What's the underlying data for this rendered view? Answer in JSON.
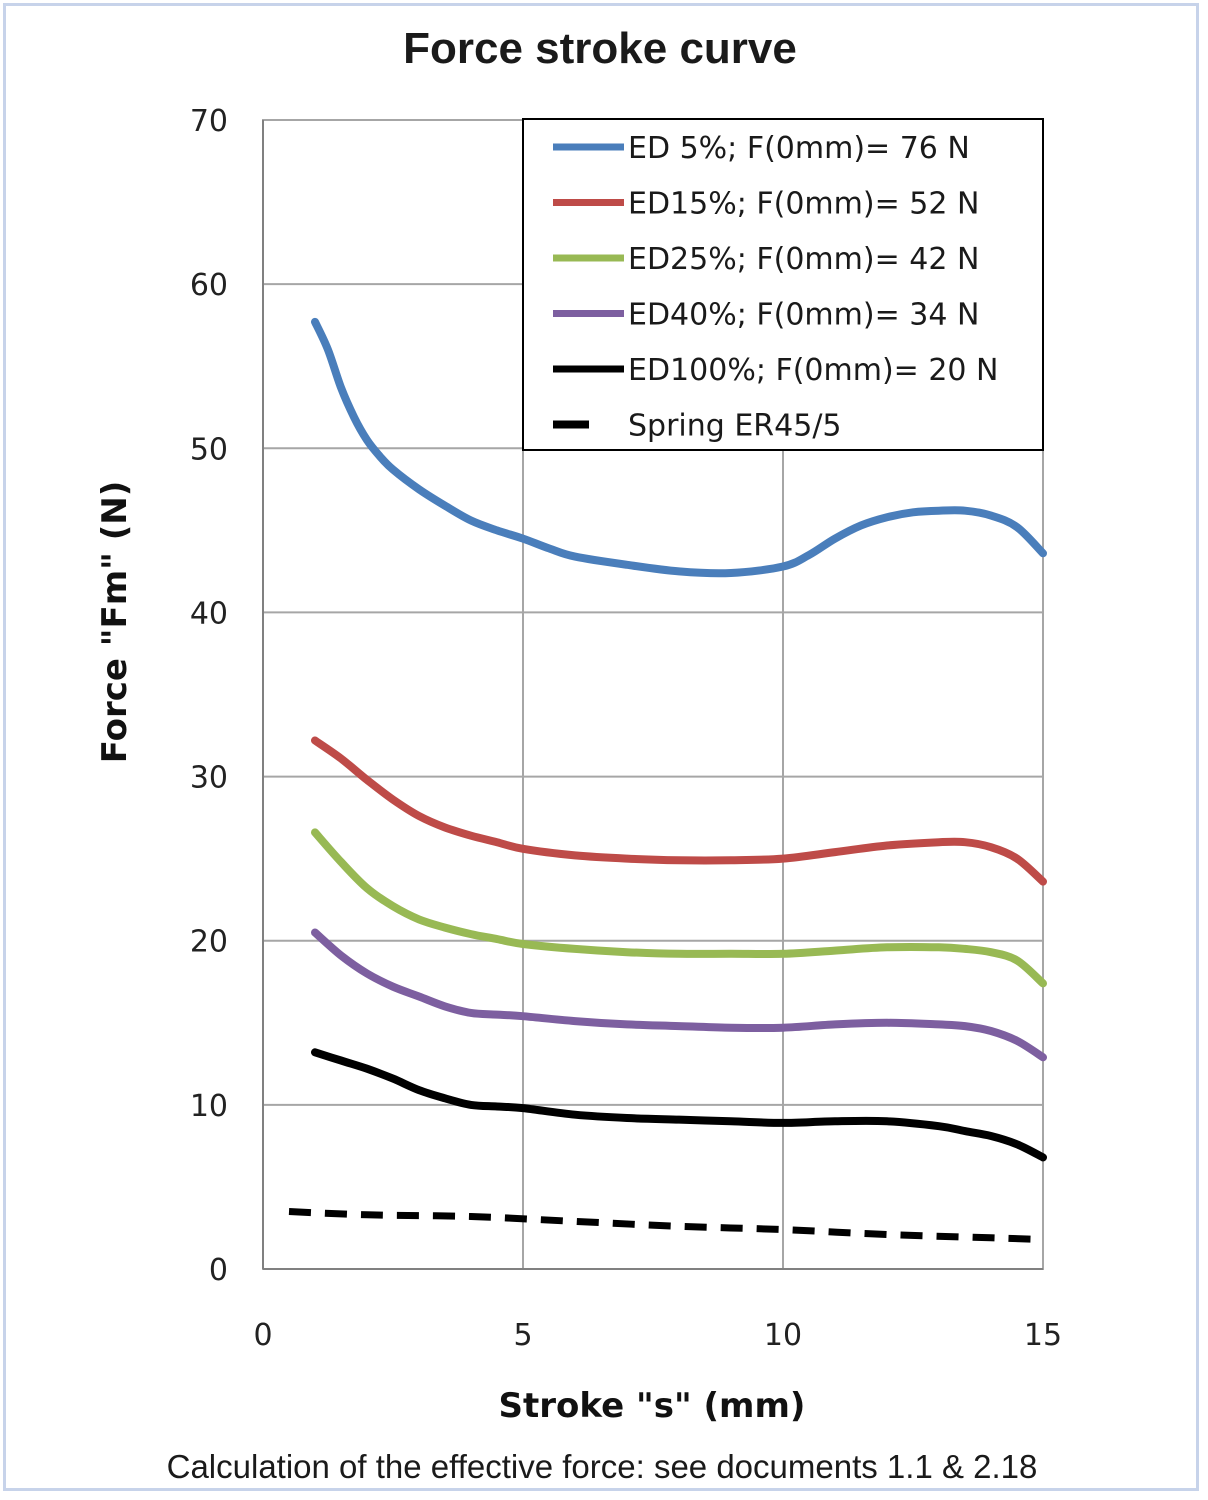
{
  "chart_data": {
    "type": "line",
    "title": "Force stroke curve",
    "xlabel": "Stroke  \"s\" (mm)",
    "ylabel": "Force \"Fm\" (N)",
    "xlim": [
      0,
      15
    ],
    "ylim": [
      0,
      70
    ],
    "x_ticks": [
      "0",
      "5",
      "10",
      "15"
    ],
    "y_ticks": [
      "0",
      "10",
      "20",
      "30",
      "40",
      "50",
      "60",
      "70"
    ],
    "grid": true,
    "legend_position": "top-right",
    "series": [
      {
        "name": "ED 5%; F(0mm)= 76 N",
        "color": "#4a7ebb",
        "style": "solid",
        "x": [
          1,
          1.25,
          1.5,
          1.75,
          2,
          2.25,
          2.5,
          3,
          3.5,
          4,
          4.5,
          5,
          5.5,
          6,
          7,
          8,
          9,
          10,
          10.5,
          11,
          11.5,
          12,
          12.5,
          13,
          13.5,
          14,
          14.5,
          15
        ],
        "y": [
          57.7,
          56,
          53.7,
          51.9,
          50.5,
          49.5,
          48.7,
          47.5,
          46.5,
          45.6,
          45,
          44.5,
          43.9,
          43.4,
          42.9,
          42.5,
          42.4,
          42.8,
          43.5,
          44.5,
          45.3,
          45.8,
          46.1,
          46.2,
          46.2,
          45.9,
          45.2,
          43.6
        ]
      },
      {
        "name": "ED15%; F(0mm)= 52 N",
        "color": "#be4b48",
        "style": "solid",
        "x": [
          1,
          1.5,
          2,
          2.5,
          3,
          3.5,
          4,
          4.5,
          5,
          6,
          7,
          8,
          9,
          10,
          11,
          12,
          13,
          13.5,
          14,
          14.5,
          15
        ],
        "y": [
          32.2,
          31.1,
          29.8,
          28.6,
          27.6,
          26.9,
          26.4,
          26,
          25.6,
          25.2,
          25,
          24.9,
          24.9,
          25,
          25.4,
          25.8,
          26,
          26,
          25.7,
          25,
          23.6
        ]
      },
      {
        "name": "ED25%; F(0mm)= 42 N",
        "color": "#98b954",
        "style": "solid",
        "x": [
          1,
          1.5,
          2,
          2.5,
          3,
          3.5,
          4,
          4.5,
          5,
          6,
          7,
          8,
          9,
          10,
          11,
          12,
          13,
          13.5,
          14,
          14.5,
          15
        ],
        "y": [
          26.6,
          24.8,
          23.2,
          22.1,
          21.3,
          20.8,
          20.4,
          20.1,
          19.8,
          19.5,
          19.3,
          19.2,
          19.2,
          19.2,
          19.4,
          19.6,
          19.6,
          19.5,
          19.3,
          18.8,
          17.4
        ]
      },
      {
        "name": "ED40%; F(0mm)= 34 N",
        "color": "#7d5fa0",
        "style": "solid",
        "x": [
          1,
          1.5,
          2,
          2.5,
          3,
          3.5,
          4,
          4.5,
          5,
          6,
          7,
          8,
          9,
          10,
          11,
          12,
          13,
          13.5,
          14,
          14.5,
          15
        ],
        "y": [
          20.5,
          19.1,
          18,
          17.2,
          16.6,
          16,
          15.6,
          15.5,
          15.4,
          15.1,
          14.9,
          14.8,
          14.7,
          14.7,
          14.9,
          15,
          14.9,
          14.8,
          14.5,
          13.9,
          12.9
        ]
      },
      {
        "name": "ED100%; F(0mm)= 20 N",
        "color": "#000000",
        "style": "solid",
        "x": [
          1,
          1.5,
          2,
          2.5,
          3,
          3.5,
          4,
          4.5,
          5,
          6,
          7,
          8,
          9,
          10,
          11,
          12,
          13,
          13.5,
          14,
          14.5,
          15
        ],
        "y": [
          13.2,
          12.7,
          12.2,
          11.6,
          10.9,
          10.4,
          10,
          9.9,
          9.8,
          9.4,
          9.2,
          9.1,
          9,
          8.9,
          9,
          9,
          8.7,
          8.4,
          8.1,
          7.6,
          6.8
        ]
      },
      {
        "name": "Spring  ER45/5",
        "color": "#000000",
        "style": "dashed",
        "x": [
          0.5,
          2,
          4,
          6,
          8,
          10,
          12,
          14,
          15
        ],
        "y": [
          3.5,
          3.3,
          3.2,
          2.9,
          2.6,
          2.4,
          2.1,
          1.9,
          1.8
        ]
      }
    ],
    "footnote": "Calculation of the effective force: see documents 1.1 & 2.18"
  }
}
